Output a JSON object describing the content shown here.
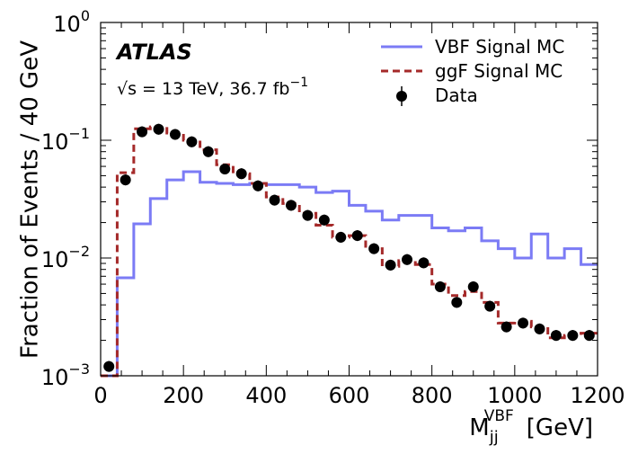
{
  "chart_data": {
    "type": "line",
    "title": "",
    "experiment_label": "ATLAS",
    "energy_label": "√s = 13 TeV, 36.7 fb",
    "energy_label_sup": "−1",
    "xlabel": "M",
    "xlabel_sub": "jj",
    "xlabel_sup": "VBF",
    "xlabel_unit": "[GeV]",
    "ylabel": "Fraction of Events / 40 GeV",
    "xlim": [
      0,
      1200
    ],
    "ylim": [
      0.001,
      1
    ],
    "y_scale": "log",
    "x_ticks": [
      "0",
      "200",
      "400",
      "600",
      "800",
      "1000",
      "1200"
    ],
    "y_ticks": [
      {
        "base": "10",
        "exp": "−3"
      },
      {
        "base": "10",
        "exp": "−2"
      },
      {
        "base": "10",
        "exp": "−1"
      },
      {
        "base": "10",
        "exp": "0"
      }
    ],
    "legend_placement": "top-right",
    "grid": false,
    "bin_edges": [
      0,
      40,
      80,
      120,
      160,
      200,
      240,
      280,
      320,
      360,
      400,
      440,
      480,
      520,
      560,
      600,
      640,
      680,
      720,
      760,
      800,
      840,
      880,
      920,
      960,
      1000,
      1040,
      1080,
      1120,
      1160,
      1200
    ],
    "series": [
      {
        "name": "VBF Signal MC",
        "kind": "step",
        "color": "#7b7bf5",
        "style": "solid",
        "values": [
          0.001,
          0.0068,
          0.0195,
          0.032,
          0.046,
          0.054,
          0.044,
          0.043,
          0.042,
          0.043,
          0.042,
          0.042,
          0.04,
          0.036,
          0.037,
          0.028,
          0.025,
          0.021,
          0.023,
          0.023,
          0.018,
          0.017,
          0.018,
          0.014,
          0.012,
          0.01,
          0.016,
          0.01,
          0.012,
          0.0088
        ]
      },
      {
        "name": "ggF Signal MC",
        "kind": "step",
        "color": "#a52a2a",
        "style": "dashed",
        "values": [
          0.001,
          0.053,
          0.125,
          0.13,
          0.115,
          0.1,
          0.083,
          0.062,
          0.052,
          0.043,
          0.033,
          0.029,
          0.024,
          0.019,
          0.015,
          0.0155,
          0.012,
          0.0085,
          0.0095,
          0.0088,
          0.006,
          0.0048,
          0.0052,
          0.0042,
          0.0028,
          0.0029,
          0.0026,
          0.0021,
          0.0022,
          0.0023
        ]
      },
      {
        "name": "Data",
        "kind": "points",
        "color": "#000000",
        "x": [
          20,
          60,
          100,
          140,
          180,
          220,
          260,
          300,
          340,
          380,
          420,
          460,
          500,
          540,
          580,
          620,
          660,
          700,
          740,
          780,
          820,
          860,
          900,
          940,
          980,
          1020,
          1060,
          1100,
          1140,
          1180
        ],
        "values": [
          0.0012,
          0.046,
          0.118,
          0.124,
          0.112,
          0.097,
          0.08,
          0.057,
          0.052,
          0.041,
          0.031,
          0.028,
          0.023,
          0.021,
          0.015,
          0.0155,
          0.012,
          0.0087,
          0.0097,
          0.0091,
          0.0057,
          0.0042,
          0.0057,
          0.0039,
          0.0026,
          0.0028,
          0.0025,
          0.0022,
          0.0022,
          0.0022
        ]
      }
    ]
  }
}
